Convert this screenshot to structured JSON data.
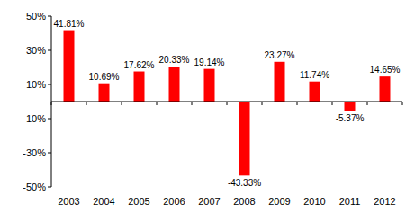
{
  "chart_data": {
    "type": "bar",
    "categories": [
      "2003",
      "2004",
      "2005",
      "2006",
      "2007",
      "2008",
      "2009",
      "2010",
      "2011",
      "2012"
    ],
    "values": [
      41.81,
      10.69,
      17.62,
      20.33,
      19.14,
      -43.33,
      23.27,
      11.74,
      -5.37,
      14.65
    ],
    "value_labels": [
      "41.81%",
      "10.69%",
      "17.62%",
      "20.33%",
      "19.14%",
      "-43.33%",
      "23.27%",
      "11.74%",
      "-5.37%",
      "14.65%"
    ],
    "color": "#ff0000",
    "ylim": [
      -50,
      50
    ],
    "yticks": [
      {
        "value": -50,
        "label": "-50%"
      },
      {
        "value": -30,
        "label": "-30%"
      },
      {
        "value": -10,
        "label": "-10%"
      },
      {
        "value": 10,
        "label": "10%"
      },
      {
        "value": 30,
        "label": "30%"
      },
      {
        "value": 50,
        "label": "50%"
      }
    ],
    "grid": false,
    "data_labels": true
  }
}
